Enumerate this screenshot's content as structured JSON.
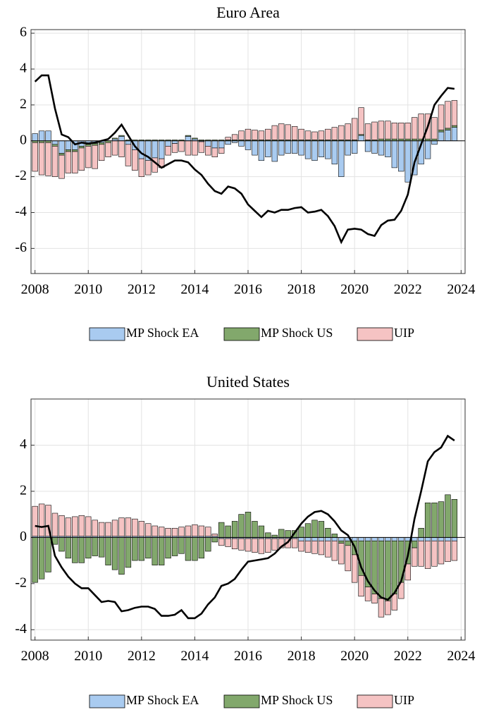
{
  "chart_data": [
    {
      "type": "bar",
      "stacked": true,
      "title": "Euro Area",
      "x": [
        2008,
        2008.25,
        2008.5,
        2008.75,
        2009,
        2009.25,
        2009.5,
        2009.75,
        2010,
        2010.25,
        2010.5,
        2010.75,
        2011,
        2011.25,
        2011.5,
        2011.75,
        2012,
        2012.25,
        2012.5,
        2012.75,
        2013,
        2013.25,
        2013.5,
        2013.75,
        2014,
        2014.25,
        2014.5,
        2014.75,
        2015,
        2015.25,
        2015.5,
        2015.75,
        2016,
        2016.25,
        2016.5,
        2016.75,
        2017,
        2017.25,
        2017.5,
        2017.75,
        2018,
        2018.25,
        2018.5,
        2018.75,
        2019,
        2019.25,
        2019.5,
        2019.75,
        2020,
        2020.25,
        2020.5,
        2020.75,
        2021,
        2021.25,
        2021.5,
        2021.75,
        2022,
        2022.25,
        2022.5,
        2022.75,
        2023,
        2023.25,
        2023.5,
        2023.75
      ],
      "xlim": [
        2007.85,
        2024.15
      ],
      "xticks": [
        2008,
        2010,
        2012,
        2014,
        2016,
        2018,
        2020,
        2022,
        2024
      ],
      "ylim": [
        -7.4,
        6.2
      ],
      "yticks": [
        -6,
        -4,
        -2,
        0,
        2,
        4,
        6
      ],
      "grid": true,
      "series": [
        {
          "name": "MP Shock EA",
          "color": "#a9cbf0",
          "values": [
            0.4,
            0.55,
            0.55,
            -0.2,
            -0.7,
            -0.5,
            -0.5,
            -0.3,
            -0.2,
            -0.15,
            -0.1,
            0.0,
            0.1,
            0.25,
            -0.2,
            -0.5,
            -1.0,
            -1.1,
            -0.95,
            -1.0,
            -0.3,
            -0.15,
            0.0,
            0.25,
            0.1,
            -0.05,
            -0.3,
            -0.4,
            -0.4,
            -0.2,
            -0.1,
            -0.3,
            -0.5,
            -0.8,
            -1.1,
            -0.9,
            -1.15,
            -0.8,
            -0.7,
            -0.7,
            -0.8,
            -1.0,
            -1.1,
            -0.9,
            -1.0,
            -1.3,
            -2.0,
            -0.8,
            -0.7,
            0.3,
            -0.6,
            -0.7,
            -0.8,
            -0.9,
            -1.5,
            -1.7,
            -2.3,
            -1.9,
            -1.3,
            -1.0,
            -0.2,
            0.5,
            0.6,
            0.75
          ]
        },
        {
          "name": "MP Shock US",
          "color": "#82a86c",
          "values": [
            -0.1,
            -0.1,
            -0.1,
            -0.1,
            -0.1,
            -0.1,
            -0.1,
            -0.1,
            -0.1,
            -0.1,
            -0.1,
            -0.1,
            0.05,
            0.05,
            0.05,
            0.05,
            0.05,
            0.05,
            0.05,
            0.05,
            0.05,
            0.05,
            0.05,
            0.05,
            0.05,
            0.05,
            0.05,
            0.05,
            0.05,
            0.05,
            0.05,
            0.05,
            0.05,
            0.05,
            0.05,
            0.05,
            0.05,
            0.05,
            0.05,
            0.05,
            0.05,
            0.05,
            0.05,
            0.05,
            0.05,
            0.05,
            0.05,
            0.05,
            0.05,
            0.05,
            0.05,
            0.05,
            0.1,
            0.1,
            0.1,
            0.1,
            0.1,
            0.1,
            0.1,
            0.1,
            0.1,
            0.1,
            0.1,
            0.1
          ]
        },
        {
          "name": "UIP",
          "color": "#f5c3c3",
          "values": [
            -1.6,
            -1.8,
            -1.85,
            -1.7,
            -1.3,
            -1.2,
            -1.2,
            -1.25,
            -1.2,
            -1.3,
            -0.9,
            -0.8,
            -0.8,
            -0.9,
            -1.2,
            -1.15,
            -1.0,
            -0.8,
            -0.8,
            -0.5,
            -0.5,
            -0.5,
            -0.6,
            -0.8,
            -0.8,
            -0.6,
            -0.5,
            -0.5,
            -0.3,
            0.15,
            0.3,
            0.5,
            0.6,
            0.55,
            0.5,
            0.6,
            0.8,
            0.9,
            0.85,
            0.75,
            0.6,
            0.5,
            0.45,
            0.5,
            0.6,
            0.7,
            0.8,
            0.9,
            1.2,
            1.5,
            0.9,
            1.0,
            1.0,
            1.0,
            0.9,
            0.9,
            0.9,
            1.2,
            1.4,
            1.4,
            1.2,
            1.4,
            1.5,
            1.4
          ]
        }
      ],
      "line": {
        "color": "#000000",
        "values": [
          3.3,
          3.65,
          3.65,
          1.8,
          0.35,
          0.2,
          -0.2,
          -0.1,
          -0.15,
          -0.1,
          0.0,
          0.1,
          0.45,
          0.9,
          0.3,
          -0.3,
          -0.7,
          -0.9,
          -1.2,
          -1.5,
          -1.3,
          -1.1,
          -1.1,
          -1.2,
          -1.6,
          -1.9,
          -2.4,
          -2.8,
          -2.95,
          -2.55,
          -2.65,
          -2.95,
          -3.55,
          -3.9,
          -4.25,
          -3.9,
          -4.0,
          -3.85,
          -3.85,
          -3.75,
          -3.7,
          -4.0,
          -3.95,
          -3.85,
          -4.2,
          -4.75,
          -5.65,
          -4.95,
          -4.9,
          -4.95,
          -5.2,
          -5.3,
          -4.7,
          -4.45,
          -4.4,
          -3.9,
          -3.0,
          -1.2,
          -0.2,
          0.8,
          2.0,
          2.5,
          2.95,
          2.9
        ]
      }
    },
    {
      "type": "bar",
      "stacked": true,
      "title": "United States",
      "x": [
        2008,
        2008.25,
        2008.5,
        2008.75,
        2009,
        2009.25,
        2009.5,
        2009.75,
        2010,
        2010.25,
        2010.5,
        2010.75,
        2011,
        2011.25,
        2011.5,
        2011.75,
        2012,
        2012.25,
        2012.5,
        2012.75,
        2013,
        2013.25,
        2013.5,
        2013.75,
        2014,
        2014.25,
        2014.5,
        2014.75,
        2015,
        2015.25,
        2015.5,
        2015.75,
        2016,
        2016.25,
        2016.5,
        2016.75,
        2017,
        2017.25,
        2017.5,
        2017.75,
        2018,
        2018.25,
        2018.5,
        2018.75,
        2019,
        2019.25,
        2019.5,
        2019.75,
        2020,
        2020.25,
        2020.5,
        2020.75,
        2021,
        2021.25,
        2021.5,
        2021.75,
        2022,
        2022.25,
        2022.5,
        2022.75,
        2023,
        2023.25,
        2023.5,
        2023.75
      ],
      "xlim": [
        2007.85,
        2024.15
      ],
      "xticks": [
        2008,
        2010,
        2012,
        2014,
        2016,
        2018,
        2020,
        2022,
        2024
      ],
      "ylim": [
        -4.45,
        6.0
      ],
      "yticks": [
        -4,
        -2,
        0,
        2,
        4
      ],
      "grid": true,
      "series": [
        {
          "name": "MP Shock EA",
          "color": "#a9cbf0",
          "values": [
            0.05,
            0.05,
            0.05,
            0.05,
            0.05,
            0.05,
            0.05,
            0.05,
            0.05,
            0.05,
            0.05,
            0.05,
            0.05,
            0.05,
            0.05,
            0.05,
            0.05,
            0.05,
            0.05,
            0.05,
            0.05,
            0.05,
            0.05,
            0.05,
            0.05,
            0.05,
            0.05,
            0.05,
            -0.05,
            -0.05,
            -0.05,
            -0.05,
            -0.05,
            -0.05,
            -0.05,
            -0.05,
            -0.05,
            -0.05,
            -0.05,
            -0.05,
            -0.15,
            -0.15,
            -0.15,
            -0.15,
            -0.15,
            -0.15,
            -0.15,
            -0.15,
            -0.15,
            -0.15,
            -0.15,
            -0.15,
            -0.15,
            -0.15,
            -0.15,
            -0.15,
            -0.15,
            -0.15,
            -0.15,
            -0.15,
            -0.15,
            -0.15,
            -0.15,
            -0.15
          ]
        },
        {
          "name": "MP Shock US",
          "color": "#82a86c",
          "values": [
            -1.95,
            -1.8,
            -1.5,
            -0.3,
            -0.6,
            -0.9,
            -1.1,
            -1.1,
            -0.9,
            -0.8,
            -0.85,
            -1.2,
            -1.4,
            -1.6,
            -1.3,
            -1.0,
            -1.0,
            -0.9,
            -1.2,
            -1.2,
            -0.9,
            -0.8,
            -0.7,
            -1.0,
            -1.0,
            -0.9,
            -0.6,
            -0.2,
            0.65,
            0.5,
            0.7,
            1.0,
            1.1,
            0.7,
            0.5,
            0.2,
            0.1,
            0.35,
            0.3,
            0.3,
            0.45,
            0.6,
            0.75,
            0.7,
            0.4,
            0.15,
            -0.1,
            -0.2,
            -0.6,
            -1.5,
            -2.0,
            -2.3,
            -2.5,
            -2.6,
            -2.3,
            -1.8,
            -1.0,
            -0.3,
            0.4,
            1.5,
            1.5,
            1.55,
            1.85,
            1.65
          ]
        },
        {
          "name": "UIP",
          "color": "#f5c3c3",
          "values": [
            1.3,
            1.4,
            1.35,
            1.0,
            0.9,
            0.8,
            0.85,
            0.9,
            0.85,
            0.7,
            0.6,
            0.6,
            0.7,
            0.8,
            0.8,
            0.75,
            0.65,
            0.55,
            0.45,
            0.4,
            0.35,
            0.35,
            0.4,
            0.45,
            0.5,
            0.45,
            0.4,
            0.1,
            -0.3,
            -0.35,
            -0.45,
            -0.5,
            -0.55,
            -0.6,
            -0.65,
            -0.6,
            -0.5,
            -0.4,
            -0.4,
            -0.4,
            -0.45,
            -0.5,
            -0.55,
            -0.6,
            -0.7,
            -0.85,
            -0.9,
            -1.1,
            -1.2,
            -0.9,
            -0.6,
            -0.4,
            -0.8,
            -0.6,
            -0.7,
            -0.7,
            -0.7,
            -0.8,
            -1.1,
            -1.2,
            -1.1,
            -1.0,
            -0.9,
            -0.85
          ]
        }
      ],
      "line": {
        "color": "#000000",
        "values": [
          0.5,
          0.45,
          0.5,
          -0.8,
          -1.3,
          -1.7,
          -2.0,
          -2.2,
          -2.2,
          -2.5,
          -2.8,
          -2.75,
          -2.8,
          -3.2,
          -3.15,
          -3.05,
          -3.0,
          -3.0,
          -3.1,
          -3.4,
          -3.4,
          -3.35,
          -3.15,
          -3.5,
          -3.5,
          -3.3,
          -2.9,
          -2.6,
          -2.1,
          -2.0,
          -1.8,
          -1.4,
          -1.05,
          -1.0,
          -0.95,
          -0.9,
          -0.7,
          -0.4,
          -0.2,
          0.2,
          0.6,
          0.9,
          1.1,
          1.15,
          1.0,
          0.7,
          0.3,
          0.1,
          -0.4,
          -1.3,
          -1.9,
          -2.3,
          -2.6,
          -2.7,
          -2.4,
          -1.9,
          -0.8,
          0.8,
          2.0,
          3.3,
          3.7,
          3.9,
          4.4,
          4.2
        ]
      }
    }
  ]
}
